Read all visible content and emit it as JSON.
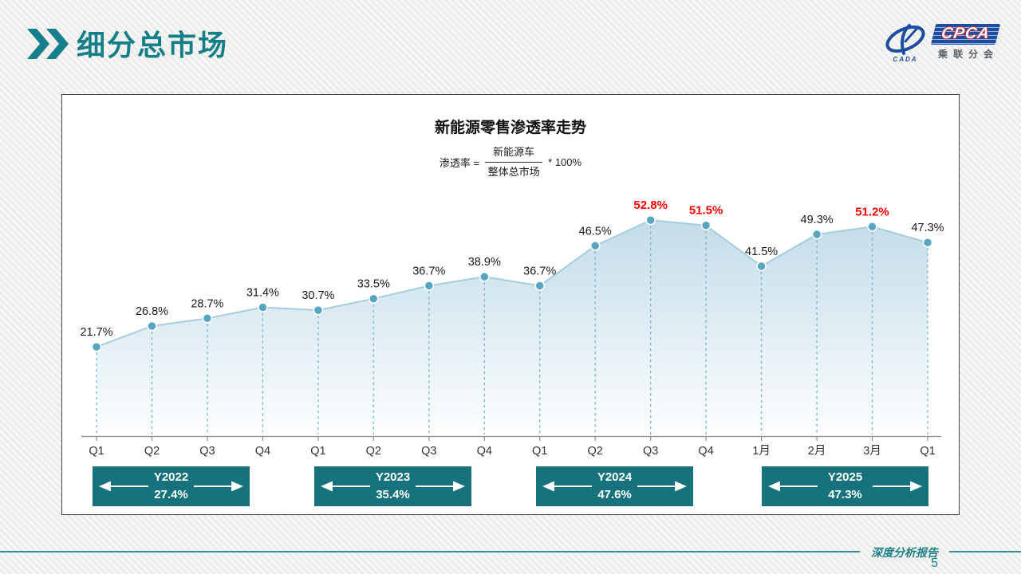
{
  "header": {
    "title": "细分总市场"
  },
  "logo": {
    "brand": "CPCA",
    "subtitle": "乘联分会",
    "emblem_text": "CADA"
  },
  "chart": {
    "formula": {
      "lhs": "渗透率 =",
      "numerator": "新能源车",
      "denominator": "整体总市场",
      "rhs": "* 100%"
    }
  },
  "chart_data": {
    "type": "area",
    "title": "新能源零售渗透率走势",
    "x_categories": [
      "Q1",
      "Q2",
      "Q3",
      "Q4",
      "Q1",
      "Q2",
      "Q3",
      "Q4",
      "Q1",
      "Q2",
      "Q3",
      "Q4",
      "1月",
      "2月",
      "3月",
      "Q1"
    ],
    "values": [
      21.7,
      26.8,
      28.7,
      31.4,
      30.7,
      33.5,
      36.7,
      38.9,
      36.7,
      46.5,
      52.8,
      51.5,
      41.5,
      49.3,
      51.2,
      47.3
    ],
    "unit": "%",
    "ylim": [
      0,
      60
    ],
    "highlight_indices": [
      10,
      11,
      14
    ],
    "legend": "none",
    "grid": "off",
    "groups": [
      {
        "label": "Y2022",
        "average": "27.4%",
        "from": 0,
        "to": 3
      },
      {
        "label": "Y2023",
        "average": "35.4%",
        "from": 4,
        "to": 7
      },
      {
        "label": "Y2024",
        "average": "47.6%",
        "from": 8,
        "to": 11
      },
      {
        "label": "Y2025",
        "average": "47.3%",
        "from": 12,
        "to": 15
      }
    ],
    "colors": {
      "line": "#A4CEDE",
      "marker": "#57A5C1",
      "dropline": "#6FB3CB",
      "area_top": "#C3DCE9",
      "area_bottom": "#FDFEFF",
      "label": "#1A1A1A",
      "highlight_label": "#FF0000",
      "axis": "#8C8C8C",
      "group_box": "#16737E"
    }
  },
  "footer": {
    "report_label": "深度分析报告",
    "page_number": "5"
  }
}
